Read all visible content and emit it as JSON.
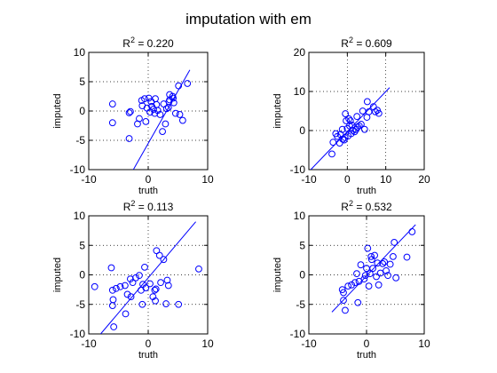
{
  "figure": {
    "title": "imputation with em"
  },
  "chart_data": [
    {
      "type": "scatter",
      "title": "R² = 0.220",
      "title_prefix": "R",
      "title_sup": "2",
      "title_suffix": " = 0.220",
      "xlabel": "truth",
      "ylabel": "imputed",
      "xlim": [
        -10,
        10
      ],
      "ylim": [
        -10,
        10
      ],
      "xticks": [
        -10,
        0,
        10
      ],
      "yticks": [
        -10,
        -5,
        0,
        5,
        10
      ],
      "grid": true,
      "marker": "circle-open",
      "color": "#0000ff",
      "fit_line": [
        [
          -2.5,
          -10
        ],
        [
          7,
          7
        ]
      ],
      "points": [
        [
          -6,
          1.2
        ],
        [
          -6,
          -2
        ],
        [
          -3.2,
          -0.3
        ],
        [
          -3,
          -0.1
        ],
        [
          -3.2,
          -4.7
        ],
        [
          -1.8,
          -2.2
        ],
        [
          -1.5,
          -1.3
        ],
        [
          -1.1,
          1.8
        ],
        [
          -0.6,
          2.1
        ],
        [
          -0.4,
          -1.8
        ],
        [
          -0.2,
          0.5
        ],
        [
          0.1,
          2.2
        ],
        [
          0.3,
          -0.2
        ],
        [
          0.5,
          1.6
        ],
        [
          0.6,
          0.8
        ],
        [
          0.9,
          0.3
        ],
        [
          1.1,
          -0.4
        ],
        [
          1.2,
          2.1
        ],
        [
          1.4,
          1.1
        ],
        [
          1.6,
          0.1
        ],
        [
          2,
          -0.6
        ],
        [
          2.4,
          -3.5
        ],
        [
          2.6,
          1.2
        ],
        [
          2.9,
          -2.2
        ],
        [
          3.1,
          0.4
        ],
        [
          3.4,
          0.6
        ],
        [
          3.5,
          1.6
        ],
        [
          3.6,
          2.8
        ],
        [
          4.1,
          2.5
        ],
        [
          4.6,
          -0.4
        ],
        [
          4.2,
          2.2
        ],
        [
          4.3,
          1.4
        ],
        [
          5.1,
          4.3
        ],
        [
          5.3,
          -0.6
        ],
        [
          5.8,
          -1.6
        ],
        [
          6.6,
          4.7
        ],
        [
          3.6,
          1.9
        ],
        [
          -1,
          0.9
        ]
      ]
    },
    {
      "type": "scatter",
      "title": "R² = 0.609",
      "title_prefix": "R",
      "title_sup": "2",
      "title_suffix": " = 0.609",
      "xlabel": "truth",
      "ylabel": "imputed",
      "xlim": [
        -10,
        20
      ],
      "ylim": [
        -10,
        20
      ],
      "xticks": [
        -10,
        0,
        10,
        20
      ],
      "yticks": [
        -10,
        0,
        10,
        20
      ],
      "grid": true,
      "marker": "circle-open",
      "color": "#0000ff",
      "fit_line": [
        [
          -9.5,
          -10
        ],
        [
          11,
          11
        ]
      ],
      "points": [
        [
          -4,
          -6
        ],
        [
          -3.7,
          -3
        ],
        [
          -3,
          -0.8
        ],
        [
          -2.6,
          -1.5
        ],
        [
          -2,
          -3.2
        ],
        [
          -1.8,
          -1
        ],
        [
          -1.3,
          0.3
        ],
        [
          -1.2,
          -2.2
        ],
        [
          -0.8,
          -2.4
        ],
        [
          -0.6,
          -1.8
        ],
        [
          -0.3,
          2.5
        ],
        [
          0,
          0.5
        ],
        [
          0.2,
          -1.4
        ],
        [
          0.4,
          3
        ],
        [
          0.6,
          1.2
        ],
        [
          0.8,
          2.5
        ],
        [
          1.2,
          1.4
        ],
        [
          1.5,
          0
        ],
        [
          1.9,
          -0.3
        ],
        [
          2.3,
          0.3
        ],
        [
          2.7,
          0.9
        ],
        [
          3.1,
          1.2
        ],
        [
          3.6,
          1.6
        ],
        [
          4,
          5
        ],
        [
          4.5,
          0.3
        ],
        [
          5.1,
          3.4
        ],
        [
          5.6,
          4.8
        ],
        [
          5.2,
          7.4
        ],
        [
          6.8,
          6.1
        ],
        [
          7.3,
          4.8
        ],
        [
          7.8,
          5.2
        ],
        [
          8.2,
          4.4
        ],
        [
          2.5,
          3.6
        ],
        [
          -0.5,
          4.3
        ],
        [
          1,
          -0.8
        ]
      ]
    },
    {
      "type": "scatter",
      "title": "R² = 0.113",
      "title_prefix": "R",
      "title_sup": "2",
      "title_suffix": " = 0.113",
      "xlabel": "truth",
      "ylabel": "imputed",
      "xlim": [
        -10,
        10
      ],
      "ylim": [
        -10,
        10
      ],
      "xticks": [
        -10,
        0,
        10
      ],
      "yticks": [
        -10,
        -5,
        0,
        5,
        10
      ],
      "grid": true,
      "marker": "circle-open",
      "color": "#0000ff",
      "fit_line": [
        [
          -8,
          -10
        ],
        [
          8,
          9
        ]
      ],
      "points": [
        [
          -9,
          -2
        ],
        [
          -6.2,
          1.2
        ],
        [
          -6,
          -2.6
        ],
        [
          -5.4,
          -2.3
        ],
        [
          -6,
          -5.2
        ],
        [
          -5.9,
          -4.2
        ],
        [
          -5.8,
          -8.8
        ],
        [
          -4.7,
          -2
        ],
        [
          -3.9,
          -1.8
        ],
        [
          -3.8,
          -6.6
        ],
        [
          -3,
          -0.7
        ],
        [
          -2.9,
          -3.7
        ],
        [
          -2.6,
          -1.3
        ],
        [
          -2.1,
          -0.5
        ],
        [
          -1.5,
          -0.1
        ],
        [
          -1.2,
          -2.6
        ],
        [
          -0.9,
          -1.6
        ],
        [
          -0.4,
          -2.2
        ],
        [
          -0.6,
          1.3
        ],
        [
          0.3,
          -1.5
        ],
        [
          0.8,
          -3.7
        ],
        [
          1.2,
          -4.4
        ],
        [
          1.3,
          -2.4
        ],
        [
          1.4,
          4.1
        ],
        [
          1.9,
          3.3
        ],
        [
          2.1,
          -1.3
        ],
        [
          2.6,
          2.6
        ],
        [
          3,
          -4.9
        ],
        [
          3.2,
          -0.9
        ],
        [
          3.4,
          -1.8
        ],
        [
          5.1,
          -5
        ],
        [
          8.5,
          1
        ],
        [
          -3.5,
          -3.3
        ],
        [
          1.1,
          -2.6
        ],
        [
          -1,
          -5
        ]
      ]
    },
    {
      "type": "scatter",
      "title": "R² = 0.532",
      "title_prefix": "R",
      "title_sup": "2",
      "title_suffix": " = 0.532",
      "xlabel": "truth",
      "ylabel": "imputed",
      "xlim": [
        -10,
        10
      ],
      "ylim": [
        -10,
        10
      ],
      "xticks": [
        -10,
        0,
        10
      ],
      "yticks": [
        -10,
        -5,
        0,
        5,
        10
      ],
      "grid": true,
      "marker": "circle-open",
      "color": "#0000ff",
      "fit_line": [
        [
          -6,
          -6.3
        ],
        [
          8.5,
          8.5
        ]
      ],
      "points": [
        [
          -4.2,
          -2.5
        ],
        [
          -4,
          -3
        ],
        [
          -4,
          -4.3
        ],
        [
          -3.7,
          -6
        ],
        [
          -3.2,
          -1.9
        ],
        [
          -2.6,
          -1.7
        ],
        [
          -2,
          -1.3
        ],
        [
          -1.7,
          0.2
        ],
        [
          -1.5,
          -4.7
        ],
        [
          -1.3,
          -1.1
        ],
        [
          -1,
          1.7
        ],
        [
          -0.4,
          -0.7
        ],
        [
          0,
          1.1
        ],
        [
          0.2,
          4.5
        ],
        [
          0.4,
          -1.9
        ],
        [
          0.6,
          0.2
        ],
        [
          0.9,
          2.6
        ],
        [
          1.1,
          1.1
        ],
        [
          1.4,
          3.3
        ],
        [
          1.7,
          -0.3
        ],
        [
          1.9,
          2
        ],
        [
          2.1,
          -1.7
        ],
        [
          2.4,
          0.3
        ],
        [
          2.8,
          1.9
        ],
        [
          3.1,
          2.2
        ],
        [
          3.4,
          0.7
        ],
        [
          3.7,
          -0.1
        ],
        [
          4.1,
          1.8
        ],
        [
          4.6,
          3.1
        ],
        [
          4.8,
          5.5
        ],
        [
          5.1,
          -0.5
        ],
        [
          7,
          3
        ],
        [
          7.9,
          7.3
        ],
        [
          0.8,
          3.1
        ],
        [
          -0.2,
          -0.1
        ]
      ]
    }
  ]
}
